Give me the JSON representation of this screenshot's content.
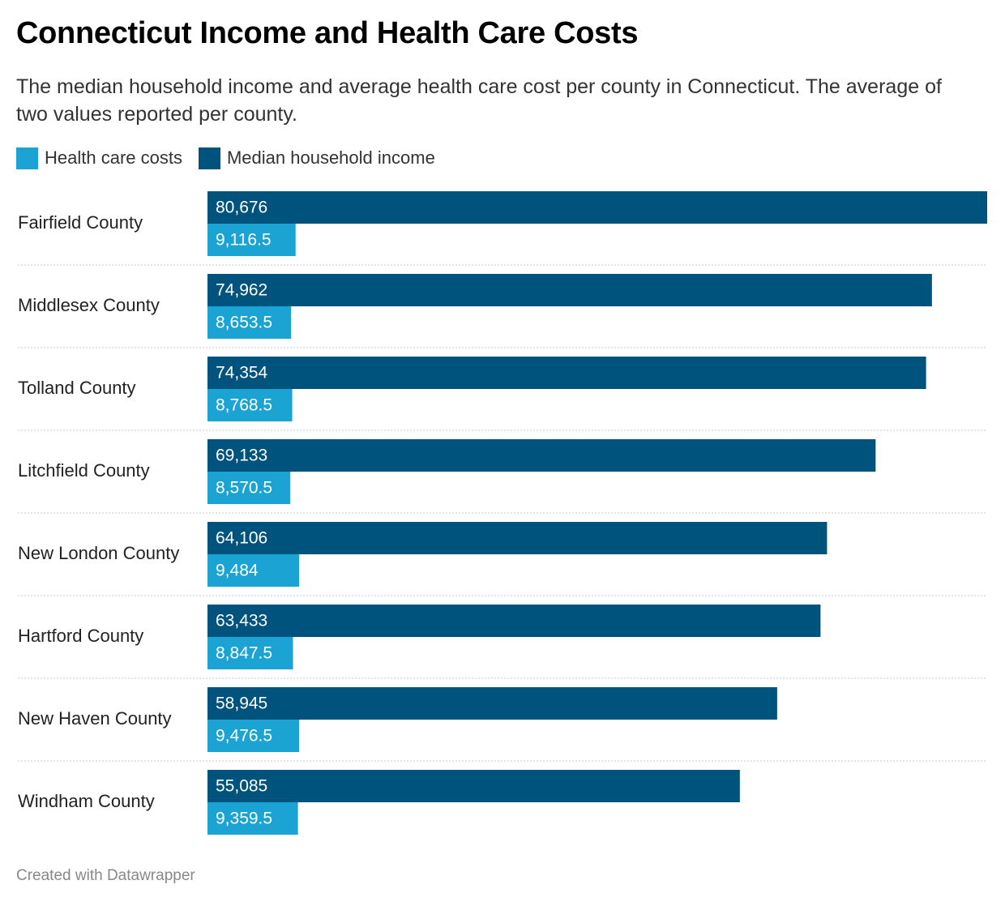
{
  "title": "Connecticut Income and Health Care Costs",
  "subtitle": "The median household income and average health care cost per county in Connecticut. The average of two values reported per county.",
  "footer": "Created with Datawrapper",
  "colors": {
    "health": "#1ba3d4",
    "income": "#00537d",
    "separator": "#c8c8c8"
  },
  "chart_data": {
    "type": "bar",
    "orientation": "horizontal",
    "categories": [
      "Fairfield County",
      "Middlesex County",
      "Tolland County",
      "Litchfield County",
      "New London County",
      "Hartford County",
      "New Haven County",
      "Windham County"
    ],
    "series": [
      {
        "name": "Median household income",
        "color": "#00537d",
        "values": [
          80676,
          74962,
          74354,
          69133,
          64106,
          63433,
          58945,
          55085
        ],
        "labels": [
          "80,676",
          "74,962",
          "74,354",
          "69,133",
          "64,106",
          "63,433",
          "58,945",
          "55,085"
        ]
      },
      {
        "name": "Health care costs",
        "color": "#1ba3d4",
        "values": [
          9116.5,
          8653.5,
          8768.5,
          8570.5,
          9484,
          8847.5,
          9476.5,
          9359.5
        ],
        "labels": [
          "9,116.5",
          "8,653.5",
          "8,768.5",
          "8,570.5",
          "9,484",
          "8,847.5",
          "9,476.5",
          "9,359.5"
        ]
      }
    ],
    "legend": [
      {
        "label": "Health care costs",
        "color": "#1ba3d4"
      },
      {
        "label": "Median household income",
        "color": "#00537d"
      }
    ],
    "xlim": [
      0,
      80676
    ],
    "legend_position": "top-left"
  }
}
